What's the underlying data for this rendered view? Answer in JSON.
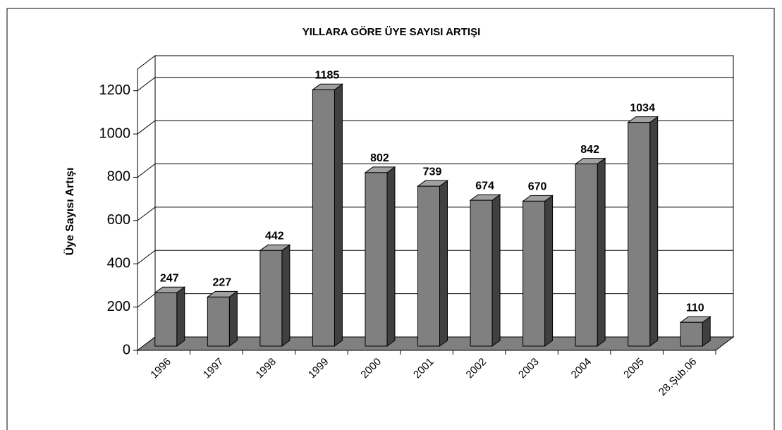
{
  "chart_data": {
    "type": "bar",
    "title": "YILLARA GÖRE ÜYE SAYISI ARTIŞI",
    "y_label": "Üye Sayısı Artışı",
    "categories": [
      "1996",
      "1997",
      "1998",
      "1999",
      "2000",
      "2001",
      "2002",
      "2003",
      "2004",
      "2005",
      "28.Şub.06"
    ],
    "values": [
      247,
      227,
      442,
      1185,
      802,
      739,
      674,
      670,
      842,
      1034,
      110
    ],
    "color": "#808080",
    "ylim": [
      0,
      1300
    ],
    "yticks": [
      0,
      200,
      400,
      600,
      800,
      1000,
      1200
    ],
    "grid": true
  }
}
